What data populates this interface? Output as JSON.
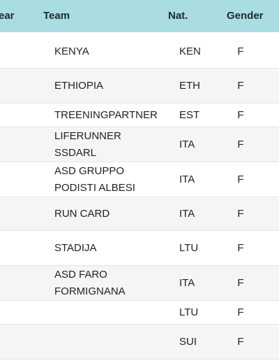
{
  "table": {
    "header": [
      "ear",
      "Team",
      "Nat.",
      "Gender"
    ],
    "rows": [
      {
        "team": [
          "KENYA"
        ],
        "nat": "KEN",
        "gender": "F"
      },
      {
        "team": [
          "ETHIOPIA"
        ],
        "nat": "ETH",
        "gender": "F"
      },
      {
        "team": [
          "TREENINGPARTNER"
        ],
        "nat": "EST",
        "gender": "F"
      },
      {
        "team": [
          "LIFERUNNER",
          "SSDARL"
        ],
        "nat": "ITA",
        "gender": "F"
      },
      {
        "team": [
          "ASD GRUPPO",
          "PODISTI ALBESI"
        ],
        "nat": "ITA",
        "gender": "F"
      },
      {
        "team": [
          "RUN CARD"
        ],
        "nat": "ITA",
        "gender": "F"
      },
      {
        "team": [
          "STADIJA"
        ],
        "nat": "LTU",
        "gender": "F"
      },
      {
        "team": [
          "ASD FARO",
          "FORMIGNANA"
        ],
        "nat": "ITA",
        "gender": "F"
      },
      {
        "team": null,
        "nat": "LTU",
        "gender": "F"
      },
      {
        "team": null,
        "nat": "SUI",
        "gender": "F"
      }
    ]
  }
}
